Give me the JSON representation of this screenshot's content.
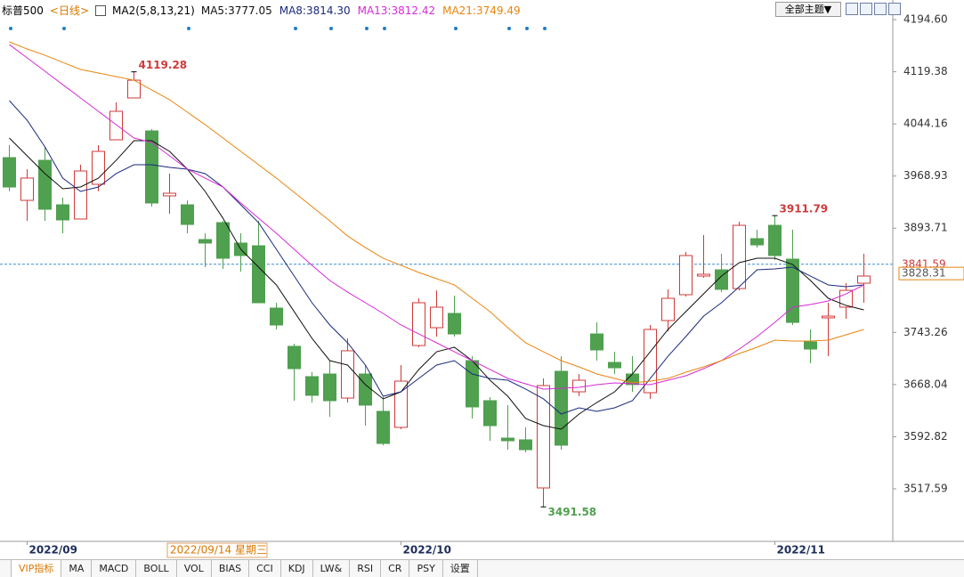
{
  "header": {
    "symbol": "标普500",
    "period": "<日线>",
    "indicator": "MA2(5,8,13,21)",
    "theme_button": "全部主题▼"
  },
  "chart_data": {
    "type": "candlestick",
    "categories": [
      null,
      "2022/09",
      null,
      null,
      null,
      null,
      null,
      null,
      null,
      null,
      null,
      null,
      null,
      null,
      null,
      null,
      null,
      null,
      null,
      null,
      null,
      null,
      "2022/10",
      null,
      null,
      null,
      null,
      null,
      null,
      null,
      null,
      null,
      null,
      null,
      null,
      null,
      null,
      null,
      null,
      null,
      null,
      null,
      null,
      "2022/11",
      null,
      null,
      null,
      null,
      null
    ],
    "open": [
      3995.5,
      3933.8,
      3991.6,
      3927.4,
      3906.9,
      3957,
      4021.2,
      4081.6,
      4034,
      3940.3,
      3927.4,
      3877.3,
      3901.7,
      3872.2,
      3868.3,
      3778.4,
      3723.2,
      3679.5,
      3683.3,
      3648.6,
      3683.3,
      3629.4,
      3606.3,
      3724.4,
      3750.1,
      3770.7,
      3702.6,
      3644.8,
      3590.8,
      3588.3,
      3518.9,
      3687.2,
      3657.6,
      3741.1,
      3700,
      3683.3,
      3656.3,
      3760.4,
      3797.7,
      3824.6,
      3833.6,
      3806.6,
      3878.6,
      3897.8,
      3849,
      3729.6,
      3764.3,
      3779.7,
      3814.3
    ],
    "high": [
      4013.5,
      3978.8,
      4010.9,
      3937.7,
      3985.2,
      4013.5,
      4075.1,
      4119.28,
      4036.6,
      3972.4,
      3933.8,
      3886.3,
      3904.3,
      3886.3,
      3904.3,
      3786.1,
      3727,
      3685.9,
      3702.6,
      3734.7,
      3696.2,
      3650,
      3696.2,
      3792.5,
      3804,
      3796.4,
      3709,
      3650,
      3638.4,
      3606.3,
      3676.9,
      3709,
      3683.3,
      3757.8,
      3715.4,
      3709,
      3754,
      3805.3,
      3859.3,
      3883.7,
      3856.8,
      3903,
      3891.4,
      3911.79,
      3891.4,
      3747.6,
      3786.1,
      3814.3,
      3856.8
    ],
    "low": [
      3947,
      3904.3,
      3904.3,
      3886.3,
      3906.9,
      3947,
      4021.2,
      4081.6,
      3924.8,
      3914.6,
      3886.3,
      3837.5,
      3834.9,
      3831.1,
      3786.1,
      3747.6,
      3644.8,
      3642.2,
      3621.7,
      3642.2,
      3608.8,
      3580.6,
      3603.7,
      3721.9,
      3737.3,
      3737.3,
      3619.1,
      3587,
      3574.1,
      3570.3,
      3491.58,
      3574.1,
      3651.2,
      3702.6,
      3683.3,
      3657.6,
      3647.4,
      3745,
      3795.1,
      3822.1,
      3801.5,
      3804,
      3865.7,
      3847.8,
      3754,
      3698.7,
      3709,
      3763,
      3786.1
    ],
    "close": [
      3953.1,
      3966,
      3921,
      3905.6,
      3976.2,
      4004.5,
      4062.3,
      4107.2,
      3930,
      3944.1,
      3899.1,
      3872.2,
      3850.3,
      3854.2,
      3786.1,
      3754,
      3691,
      3652.5,
      3644.8,
      3716.8,
      3638.4,
      3583.1,
      3673,
      3786.1,
      3779.7,
      3741.1,
      3635.8,
      3608.8,
      3587,
      3574.1,
      3666.6,
      3580.6,
      3674.3,
      3718,
      3692.3,
      3668,
      3747.6,
      3792.5,
      3854.2,
      3827.2,
      3805.4,
      3897.8,
      3869.6,
      3854.2,
      3757.8,
      3719.3,
      3766.8,
      3804,
      3824.6
    ],
    "up_color": "#d03a3a",
    "down_color": "#4fa04f",
    "series": [
      {
        "name": "MA5:3777.05",
        "color": "#111111",
        "values": [
          4023.8,
          3998.1,
          3972.4,
          3950.5,
          3953.1,
          3965.9,
          3991.6,
          4019.9,
          4019.9,
          4004.5,
          3978.8,
          3946.7,
          3908.1,
          3863.2,
          3837.5,
          3811.8,
          3773.3,
          3734.7,
          3702.6,
          3696.2,
          3667.9,
          3647.4,
          3657.6,
          3689.8,
          3715.4,
          3721.9,
          3702.6,
          3674.3,
          3651.2,
          3619.1,
          3608.8,
          3603.7,
          3625.5,
          3642.2,
          3657.6,
          3683.3,
          3715.4,
          3747.6,
          3773.3,
          3798.9,
          3824.6,
          3843.9,
          3850.3,
          3850.3,
          3841.3,
          3818.2,
          3792.5,
          3782.2,
          3775.8
        ]
      },
      {
        "name": "MA8:3814.30",
        "color": "#1a2a7a",
        "values": [
          4077.7,
          4049.4,
          4010.9,
          3965.9,
          3946.7,
          3953.1,
          3972.4,
          3985.2,
          3985.2,
          3981.4,
          3978.8,
          3972.4,
          3953.1,
          3927.4,
          3901.7,
          3863.2,
          3824.6,
          3786.1,
          3754.0,
          3728.3,
          3696.2,
          3651.2,
          3657.6,
          3676.9,
          3696.2,
          3702.6,
          3683.3,
          3676.9,
          3674.3,
          3661.5,
          3647.4,
          3625.5,
          3634.5,
          3629.4,
          3634.5,
          3644.8,
          3676.9,
          3709.0,
          3737.3,
          3766.8,
          3786.1,
          3809.2,
          3833.6,
          3834.9,
          3837.5,
          3824.6,
          3811.8,
          3809.2,
          3811.8
        ]
      },
      {
        "name": "MA13:3812.42",
        "color": "#d62ad6",
        "values": [
          4158.6,
          4139.4,
          4120.1,
          4100.8,
          4081.6,
          4062.3,
          4043.0,
          4023.8,
          4017.3,
          3998.1,
          3978.8,
          3965.9,
          3953.1,
          3930.0,
          3908.1,
          3886.3,
          3863.2,
          3840.1,
          3818.2,
          3801.5,
          3786.1,
          3770.7,
          3754.0,
          3741.1,
          3728.3,
          3715.4,
          3702.6,
          3689.8,
          3676.9,
          3669.2,
          3661.5,
          3662.8,
          3664.1,
          3667.9,
          3670.5,
          3669.2,
          3667.9,
          3674.3,
          3680.8,
          3691.0,
          3702.6,
          3719.3,
          3737.3,
          3757.8,
          3779.7,
          3783.5,
          3788.7,
          3798.9,
          3811.8
        ]
      },
      {
        "name": "MA21:3749.49",
        "color": "#e8850f",
        "values": [
          4162.5,
          4152.2,
          4143.2,
          4132.9,
          4122.7,
          4117.5,
          4112.4,
          4107.2,
          4093.1,
          4079.0,
          4061.0,
          4043.0,
          4023.8,
          4004.5,
          3985.2,
          3965.9,
          3945.4,
          3924.8,
          3904.3,
          3882.4,
          3865.7,
          3850.3,
          3840.1,
          3829.8,
          3820.8,
          3811.8,
          3792.5,
          3773.3,
          3750.1,
          3728.3,
          3715.4,
          3702.6,
          3693.6,
          3683.3,
          3676.9,
          3670.5,
          3673.1,
          3676.9,
          3685.9,
          3693.6,
          3702.6,
          3712.9,
          3721.9,
          3732.1,
          3730.9,
          3730.9,
          3732.1,
          3739.9,
          3747.6
        ]
      }
    ],
    "ylim": [
      3441.8,
      4222.9
    ],
    "yticks": [
      {
        "value": 4194.6,
        "label": "4194.60"
      },
      4119.38,
      4044.16,
      3968.93,
      3893.71,
      3743.26,
      3668.04,
      3592.82,
      3517.59
    ],
    "crosshair": 3841.59,
    "last_price": 3828.31,
    "cursor_date": "2022/09/14 星期三"
  },
  "tabs": [
    "VIP指标",
    "MA",
    "MACD",
    "BOLL",
    "VOL",
    "BIAS",
    "CCI",
    "KDJ",
    "LW&",
    "RSI",
    "CR",
    "PSY",
    "设置"
  ]
}
